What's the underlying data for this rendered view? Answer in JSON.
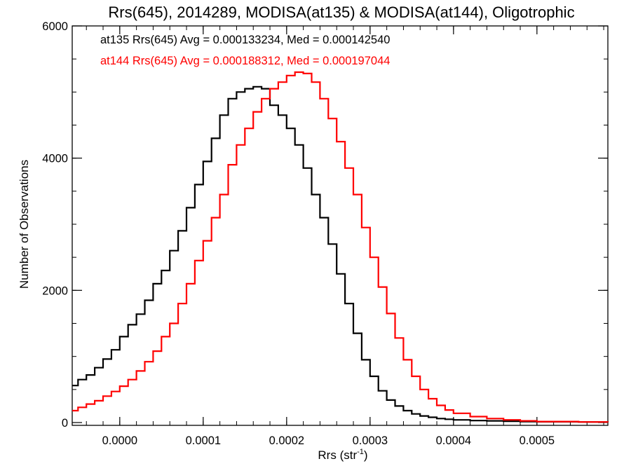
{
  "chart_data": {
    "type": "line",
    "title": "Rrs(645), 2014289, MODISA(at135) & MODISA(at144), Oligotrophic",
    "xlabel_main": "Rrs (str",
    "xlabel_sup": "-1",
    "xlabel_close": ")",
    "ylabel": "Number of Observations",
    "xlim": [
      -5.7e-05,
      0.000585
    ],
    "ylim": [
      0,
      6000
    ],
    "x_ticks": [
      "0.0000",
      "0.0001",
      "0.0002",
      "0.0003",
      "0.0004",
      "0.0005"
    ],
    "x_tick_values": [
      0.0,
      0.0001,
      0.0002,
      0.0003,
      0.0004,
      0.0005
    ],
    "y_ticks": [
      "0",
      "2000",
      "4000",
      "6000"
    ],
    "y_tick_values": [
      0,
      2000,
      4000,
      6000
    ],
    "grid": false,
    "legend_position": "top-left",
    "series": [
      {
        "name": "at135 Rrs(645) Avg = 0.000133234, Med = 0.000142540",
        "color": "#000000",
        "x": [
          -5.7e-05,
          -5e-05,
          -4e-05,
          -3e-05,
          -2e-05,
          -1e-05,
          0.0,
          1e-05,
          2e-05,
          3e-05,
          4e-05,
          5e-05,
          6e-05,
          7e-05,
          8e-05,
          9e-05,
          0.0001,
          0.00011,
          0.00012,
          0.00013,
          0.00014,
          0.00015,
          0.00016,
          0.00017,
          0.00018,
          0.00019,
          0.0002,
          0.00021,
          0.00022,
          0.00023,
          0.00024,
          0.00025,
          0.00026,
          0.00027,
          0.00028,
          0.00029,
          0.0003,
          0.00031,
          0.00032,
          0.00033,
          0.00034,
          0.00035,
          0.00036,
          0.00037,
          0.00038,
          0.00039,
          0.0004,
          0.00042,
          0.00044,
          0.00046,
          0.00048,
          0.0005,
          0.00055,
          0.000585
        ],
        "y": [
          560,
          650,
          720,
          830,
          960,
          1100,
          1300,
          1480,
          1640,
          1850,
          2100,
          2300,
          2600,
          2900,
          3250,
          3600,
          3950,
          4300,
          4650,
          4900,
          5000,
          5050,
          5080,
          5050,
          4800,
          4650,
          4450,
          4200,
          3850,
          3450,
          3100,
          2700,
          2250,
          1800,
          1350,
          950,
          700,
          480,
          340,
          250,
          180,
          130,
          100,
          80,
          60,
          50,
          40,
          30,
          25,
          20,
          15,
          12,
          8,
          5
        ]
      },
      {
        "name": "at144 Rrs(645) Avg = 0.000188312, Med = 0.000197044",
        "color": "#ff0000",
        "x": [
          -5.7e-05,
          -5e-05,
          -4e-05,
          -3e-05,
          -2e-05,
          -1e-05,
          0.0,
          1e-05,
          2e-05,
          3e-05,
          4e-05,
          5e-05,
          6e-05,
          7e-05,
          8e-05,
          9e-05,
          0.0001,
          0.00011,
          0.00012,
          0.00013,
          0.00014,
          0.00015,
          0.00016,
          0.00017,
          0.00018,
          0.00019,
          0.0002,
          0.00021,
          0.00022,
          0.00023,
          0.00024,
          0.00025,
          0.00026,
          0.00027,
          0.00028,
          0.00029,
          0.0003,
          0.00031,
          0.00032,
          0.00033,
          0.00034,
          0.00035,
          0.00036,
          0.00037,
          0.00038,
          0.00039,
          0.0004,
          0.00042,
          0.00044,
          0.00046,
          0.00048,
          0.0005,
          0.00055,
          0.000585
        ],
        "y": [
          180,
          230,
          280,
          330,
          400,
          470,
          550,
          650,
          780,
          920,
          1080,
          1300,
          1500,
          1800,
          2100,
          2450,
          2750,
          3100,
          3450,
          3900,
          4200,
          4450,
          4700,
          4900,
          5050,
          5150,
          5250,
          5300,
          5280,
          5150,
          4900,
          4600,
          4250,
          3850,
          3450,
          2950,
          2500,
          2050,
          1650,
          1280,
          950,
          700,
          500,
          360,
          260,
          190,
          140,
          90,
          60,
          40,
          25,
          15,
          8,
          5
        ]
      }
    ]
  }
}
